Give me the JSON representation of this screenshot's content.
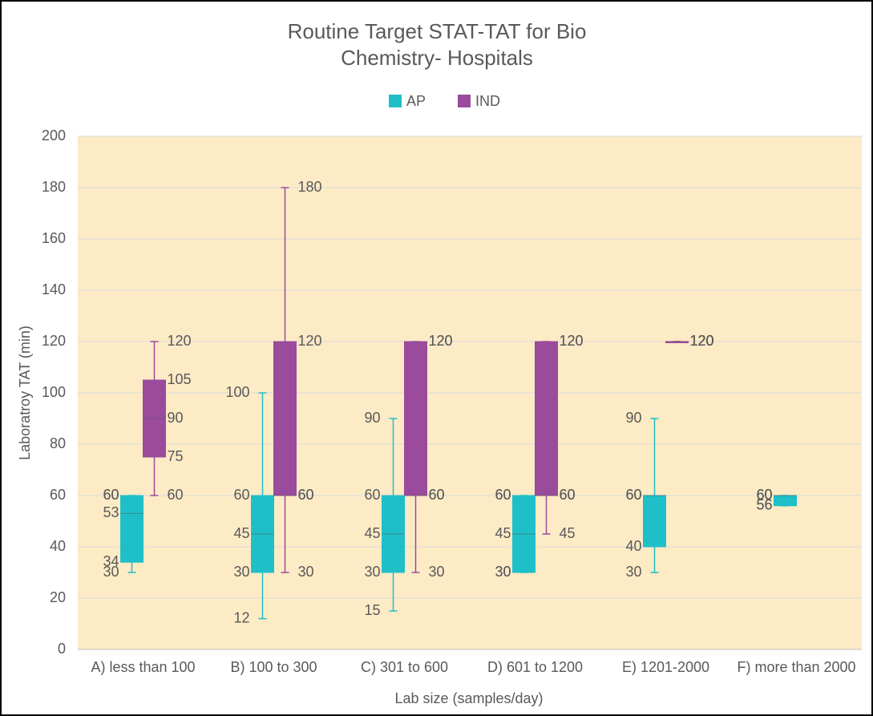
{
  "chart_data": {
    "type": "box",
    "title": [
      "Routine Target STAT-TAT for Bio",
      "Chemistry- Hospitals"
    ],
    "x_label": "Lab size (samples/day)",
    "y_label": "Laboratroy  TAT (min)",
    "categories": [
      "A) less than 100",
      "B) 100 to 300",
      "C) 301 to 600",
      "D) 601 to 1200",
      "E) 1201-2000",
      "F) more than 2000"
    ],
    "series": [
      {
        "name": "AP",
        "color": "#1fbfc8",
        "min": [
          30,
          12,
          15,
          30,
          30,
          56
        ],
        "q1": [
          34,
          30,
          30,
          30,
          40,
          56
        ],
        "median": [
          53,
          45,
          45,
          45,
          60,
          60
        ],
        "q3": [
          60,
          60,
          60,
          60,
          60,
          60
        ],
        "max": [
          60,
          100,
          90,
          60,
          90,
          60
        ]
      },
      {
        "name": "IND",
        "color": "#9a4b9c",
        "min": [
          60,
          30,
          30,
          45,
          120,
          null
        ],
        "q1": [
          75,
          60,
          60,
          60,
          120,
          null
        ],
        "median": [
          90,
          60,
          60,
          60,
          120,
          null
        ],
        "q3": [
          105,
          120,
          120,
          120,
          120,
          null
        ],
        "max": [
          120,
          180,
          120,
          120,
          120,
          null
        ]
      }
    ],
    "ylim": [
      0,
      200
    ],
    "yticks": [
      0,
      20,
      40,
      60,
      80,
      100,
      120,
      140,
      160,
      180,
      200
    ],
    "grid": true,
    "legend": "top"
  }
}
